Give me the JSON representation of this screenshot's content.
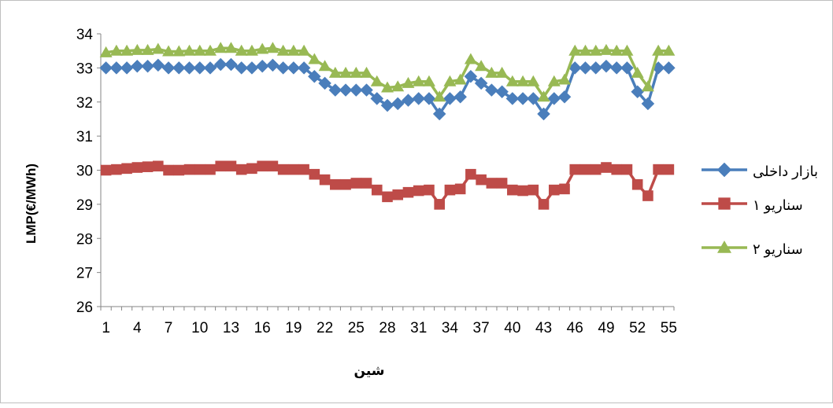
{
  "chart_data": {
    "type": "line",
    "title": "",
    "xlabel": "شین",
    "ylabel": "LMP(€/MWh)",
    "ylim": [
      26,
      34
    ],
    "ytick_step": 1,
    "x": [
      1,
      2,
      3,
      4,
      5,
      6,
      7,
      8,
      9,
      10,
      11,
      12,
      13,
      14,
      15,
      16,
      17,
      18,
      19,
      20,
      21,
      22,
      23,
      24,
      25,
      26,
      27,
      28,
      29,
      30,
      31,
      32,
      33,
      34,
      35,
      36,
      37,
      38,
      39,
      40,
      41,
      42,
      43,
      44,
      45,
      46,
      47,
      48,
      49,
      50,
      51,
      52,
      53,
      54,
      55
    ],
    "xtick_labels": [
      "1",
      "4",
      "7",
      "10",
      "13",
      "16",
      "19",
      "22",
      "25",
      "28",
      "31",
      "34",
      "37",
      "40",
      "43",
      "46",
      "49",
      "52",
      "55"
    ],
    "grid": false,
    "legend_position": "right",
    "series": [
      {
        "name": "بازار داخلی",
        "color": "#4a7ebb",
        "marker": "diamond",
        "values": [
          33.0,
          33.0,
          33.0,
          33.05,
          33.05,
          33.08,
          33.0,
          33.0,
          33.0,
          33.0,
          33.0,
          33.1,
          33.1,
          33.0,
          33.0,
          33.05,
          33.08,
          33.0,
          33.0,
          33.0,
          32.75,
          32.55,
          32.35,
          32.35,
          32.35,
          32.35,
          32.1,
          31.9,
          31.95,
          32.05,
          32.1,
          32.1,
          31.65,
          32.1,
          32.15,
          32.75,
          32.55,
          32.35,
          32.3,
          32.1,
          32.1,
          32.1,
          31.65,
          32.1,
          32.15,
          33.0,
          33.0,
          33.0,
          33.05,
          33.0,
          33.0,
          32.3,
          31.95,
          33.0,
          33.0
        ]
      },
      {
        "name": "سناریو ۱",
        "color": "#be4b48",
        "marker": "square",
        "values": [
          30.0,
          30.02,
          30.05,
          30.08,
          30.1,
          30.12,
          30.0,
          30.0,
          30.02,
          30.02,
          30.02,
          30.12,
          30.12,
          30.02,
          30.05,
          30.12,
          30.12,
          30.02,
          30.02,
          30.02,
          29.88,
          29.72,
          29.58,
          29.58,
          29.62,
          29.62,
          29.42,
          29.22,
          29.28,
          29.35,
          29.4,
          29.42,
          29.0,
          29.42,
          29.45,
          29.88,
          29.72,
          29.62,
          29.62,
          29.42,
          29.4,
          29.42,
          29.0,
          29.42,
          29.45,
          30.02,
          30.02,
          30.02,
          30.08,
          30.02,
          30.02,
          29.58,
          29.25,
          30.02,
          30.02
        ]
      },
      {
        "name": "سناریو ۲",
        "color": "#98b954",
        "marker": "triangle",
        "values": [
          33.45,
          33.5,
          33.5,
          33.52,
          33.52,
          33.55,
          33.48,
          33.48,
          33.5,
          33.5,
          33.5,
          33.58,
          33.58,
          33.5,
          33.5,
          33.55,
          33.58,
          33.5,
          33.5,
          33.5,
          33.25,
          33.05,
          32.85,
          32.85,
          32.85,
          32.85,
          32.6,
          32.42,
          32.45,
          32.55,
          32.6,
          32.6,
          32.15,
          32.6,
          32.65,
          33.25,
          33.05,
          32.85,
          32.85,
          32.6,
          32.6,
          32.6,
          32.15,
          32.6,
          32.65,
          33.5,
          33.5,
          33.5,
          33.52,
          33.5,
          33.5,
          32.85,
          32.45,
          33.5,
          33.5
        ]
      }
    ]
  }
}
